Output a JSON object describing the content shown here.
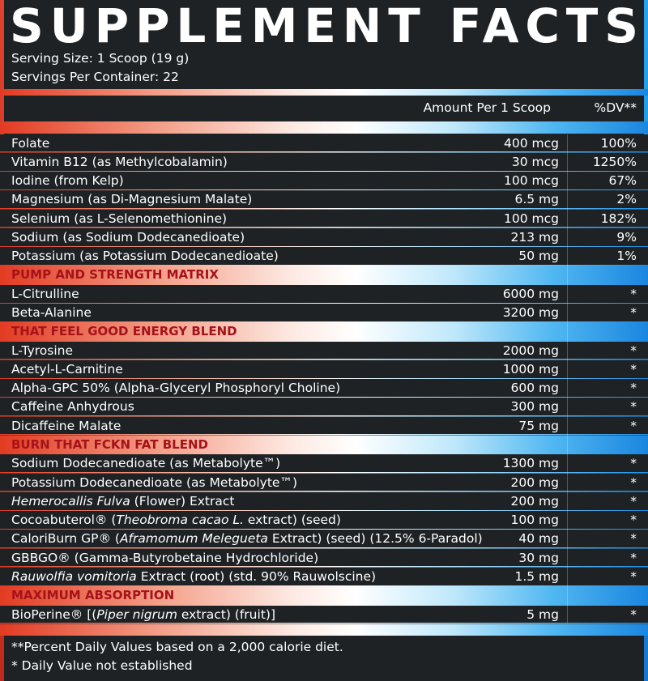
{
  "header": {
    "title": "SUPPLEMENT FACTS",
    "serving_size": "Serving Size: 1 Scoop (19 g)",
    "servings_per_container": "Servings Per Container: 22"
  },
  "columns": {
    "amount": "Amount Per 1 Scoop",
    "dv": "%DV**"
  },
  "rows": [
    {
      "name": [
        {
          "text": "Folate"
        }
      ],
      "amount": "400 mcg",
      "dv": "100%"
    },
    {
      "name": [
        {
          "text": "Vitamin B12 (as Methylcobalamin)"
        }
      ],
      "amount": "30 mcg",
      "dv": "1250%"
    },
    {
      "name": [
        {
          "text": "Iodine (from Kelp)"
        }
      ],
      "amount": "100 mcg",
      "dv": "67%"
    },
    {
      "name": [
        {
          "text": "Magnesium (as Di-Magnesium Malate)"
        }
      ],
      "amount": "6.5 mg",
      "dv": "2%"
    },
    {
      "name": [
        {
          "text": "Selenium (as L-Selenomethionine)"
        }
      ],
      "amount": "100 mcg",
      "dv": "182%"
    },
    {
      "name": [
        {
          "text": "Sodium (as Sodium Dodecanedioate)"
        }
      ],
      "amount": "213 mg",
      "dv": "9%"
    },
    {
      "name": [
        {
          "text": "Potassium (as Potassium Dodecanedioate)"
        }
      ],
      "amount": "50 mg",
      "dv": "1%"
    },
    {
      "section": "PUMP AND STRENGTH MATRIX"
    },
    {
      "name": [
        {
          "text": "L-Citrulline"
        }
      ],
      "amount": "6000 mg",
      "dv": "*"
    },
    {
      "name": [
        {
          "text": "Beta-Alanine"
        }
      ],
      "amount": "3200 mg",
      "dv": "*"
    },
    {
      "section": "THAT FEEL GOOD ENERGY BLEND"
    },
    {
      "name": [
        {
          "text": "L-Tyrosine"
        }
      ],
      "amount": "2000 mg",
      "dv": "*"
    },
    {
      "name": [
        {
          "text": "Acetyl-L-Carnitine"
        }
      ],
      "amount": "1000 mg",
      "dv": "*"
    },
    {
      "name": [
        {
          "text": "Alpha-GPC 50% (Alpha-Glyceryl Phosphoryl Choline)"
        }
      ],
      "amount": "600 mg",
      "dv": "*"
    },
    {
      "name": [
        {
          "text": "Caffeine Anhydrous"
        }
      ],
      "amount": "300 mg",
      "dv": "*"
    },
    {
      "name": [
        {
          "text": "Dicaffeine Malate"
        }
      ],
      "amount": "75 mg",
      "dv": "*"
    },
    {
      "section": "BURN THAT FCKN FAT BLEND"
    },
    {
      "name": [
        {
          "text": "Sodium Dodecanedioate (as Metabolyte™)"
        }
      ],
      "amount": "1300 mg",
      "dv": "*"
    },
    {
      "name": [
        {
          "text": "Potassium Dodecanedioate (as Metabolyte™)"
        }
      ],
      "amount": "200 mg",
      "dv": "*"
    },
    {
      "name": [
        {
          "text": "Hemerocallis Fulva",
          "italic": true
        },
        {
          "text": " (Flower) Extract"
        }
      ],
      "amount": "200 mg",
      "dv": "*"
    },
    {
      "name": [
        {
          "text": "Cocoabuterol® ("
        },
        {
          "text": "Theobroma cacao L.",
          "italic": true
        },
        {
          "text": " extract) (seed)"
        }
      ],
      "amount": "100 mg",
      "dv": "*"
    },
    {
      "name": [
        {
          "text": "CaloriBurn GP® ("
        },
        {
          "text": "Aframomum Melegueta",
          "italic": true
        },
        {
          "text": " Extract) (seed) (12.5% 6-Paradol)"
        }
      ],
      "amount": "40 mg",
      "dv": "*"
    },
    {
      "name": [
        {
          "text": "GBBGO® (Gamma-Butyrobetaine Hydrochloride)"
        }
      ],
      "amount": "30 mg",
      "dv": "*"
    },
    {
      "name": [
        {
          "text": "Rauwolfia vomitoria",
          "italic": true
        },
        {
          "text": " Extract (root) (std. 90% Rauwolscine)"
        }
      ],
      "amount": "1.5 mg",
      "dv": "*"
    },
    {
      "section": "MAXIMUM ABSORPTION"
    },
    {
      "name": [
        {
          "text": "BioPerine® [("
        },
        {
          "text": "Piper nigrum",
          "italic": true
        },
        {
          "text": " extract) (fruit)]"
        }
      ],
      "amount": "5 mg",
      "dv": "*"
    }
  ],
  "footnotes": [
    "**Percent Daily Values based on a 2,000 calorie diet.",
    "* Daily Value not established"
  ]
}
